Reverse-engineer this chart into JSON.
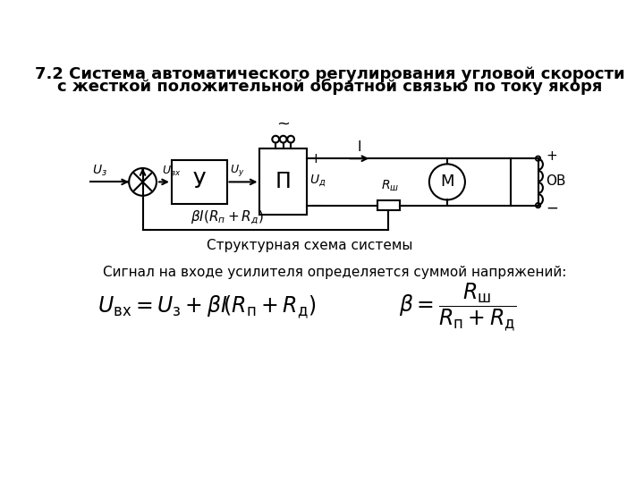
{
  "title_line1": "7.2 Система автоматического регулирования угловой скорости",
  "title_line2": "с жесткой положительной обратной связью по току якоря",
  "caption": "Структурная схема системы",
  "signal_text": "Сигнал на входе усилителя определяется суммой напряжений:",
  "bg_color": "#ffffff",
  "line_color": "#000000"
}
